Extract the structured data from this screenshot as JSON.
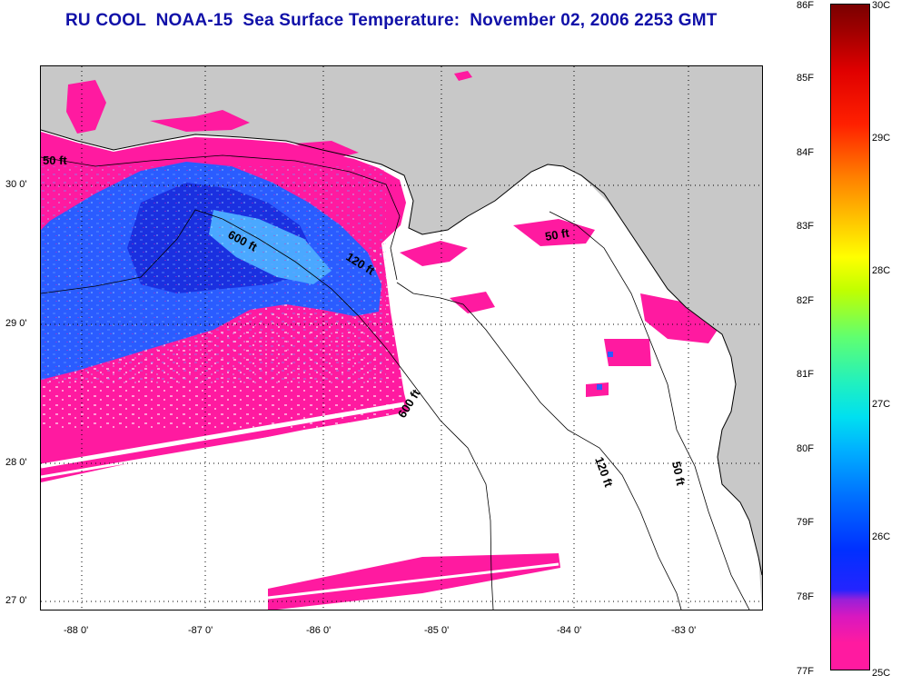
{
  "title": "RU COOL  NOAA-15  Sea Surface Temperature:  November 02, 2006 2253 GMT",
  "map": {
    "lat_labels": [
      "30 0'",
      "29 0'",
      "28 0'",
      "27 0'"
    ],
    "lon_labels": [
      "-88 0'",
      "-87 0'",
      "-86 0'",
      "-85 0'",
      "-84 0'",
      "-83 0'"
    ],
    "contours": {
      "c50_west": "50 ft",
      "c600_north": "600 ft",
      "c120_panhandle": "120 ft",
      "c50_east": "50 ft",
      "c600_south": "600 ft",
      "c120_east": "120 ft",
      "c50_east_lower": "50 ft"
    },
    "colors": {
      "land": "#c8c8c8",
      "no_data": "#ffffff",
      "warm_25c": "#ff1aa0",
      "cool": "#2a5cff"
    }
  },
  "colorbar": {
    "fahrenheit": [
      "86F",
      "85F",
      "84F",
      "83F",
      "82F",
      "81F",
      "80F",
      "79F",
      "78F",
      "77F"
    ],
    "celsius": [
      "30C",
      "29C",
      "28C",
      "27C",
      "26C",
      "25C"
    ]
  }
}
